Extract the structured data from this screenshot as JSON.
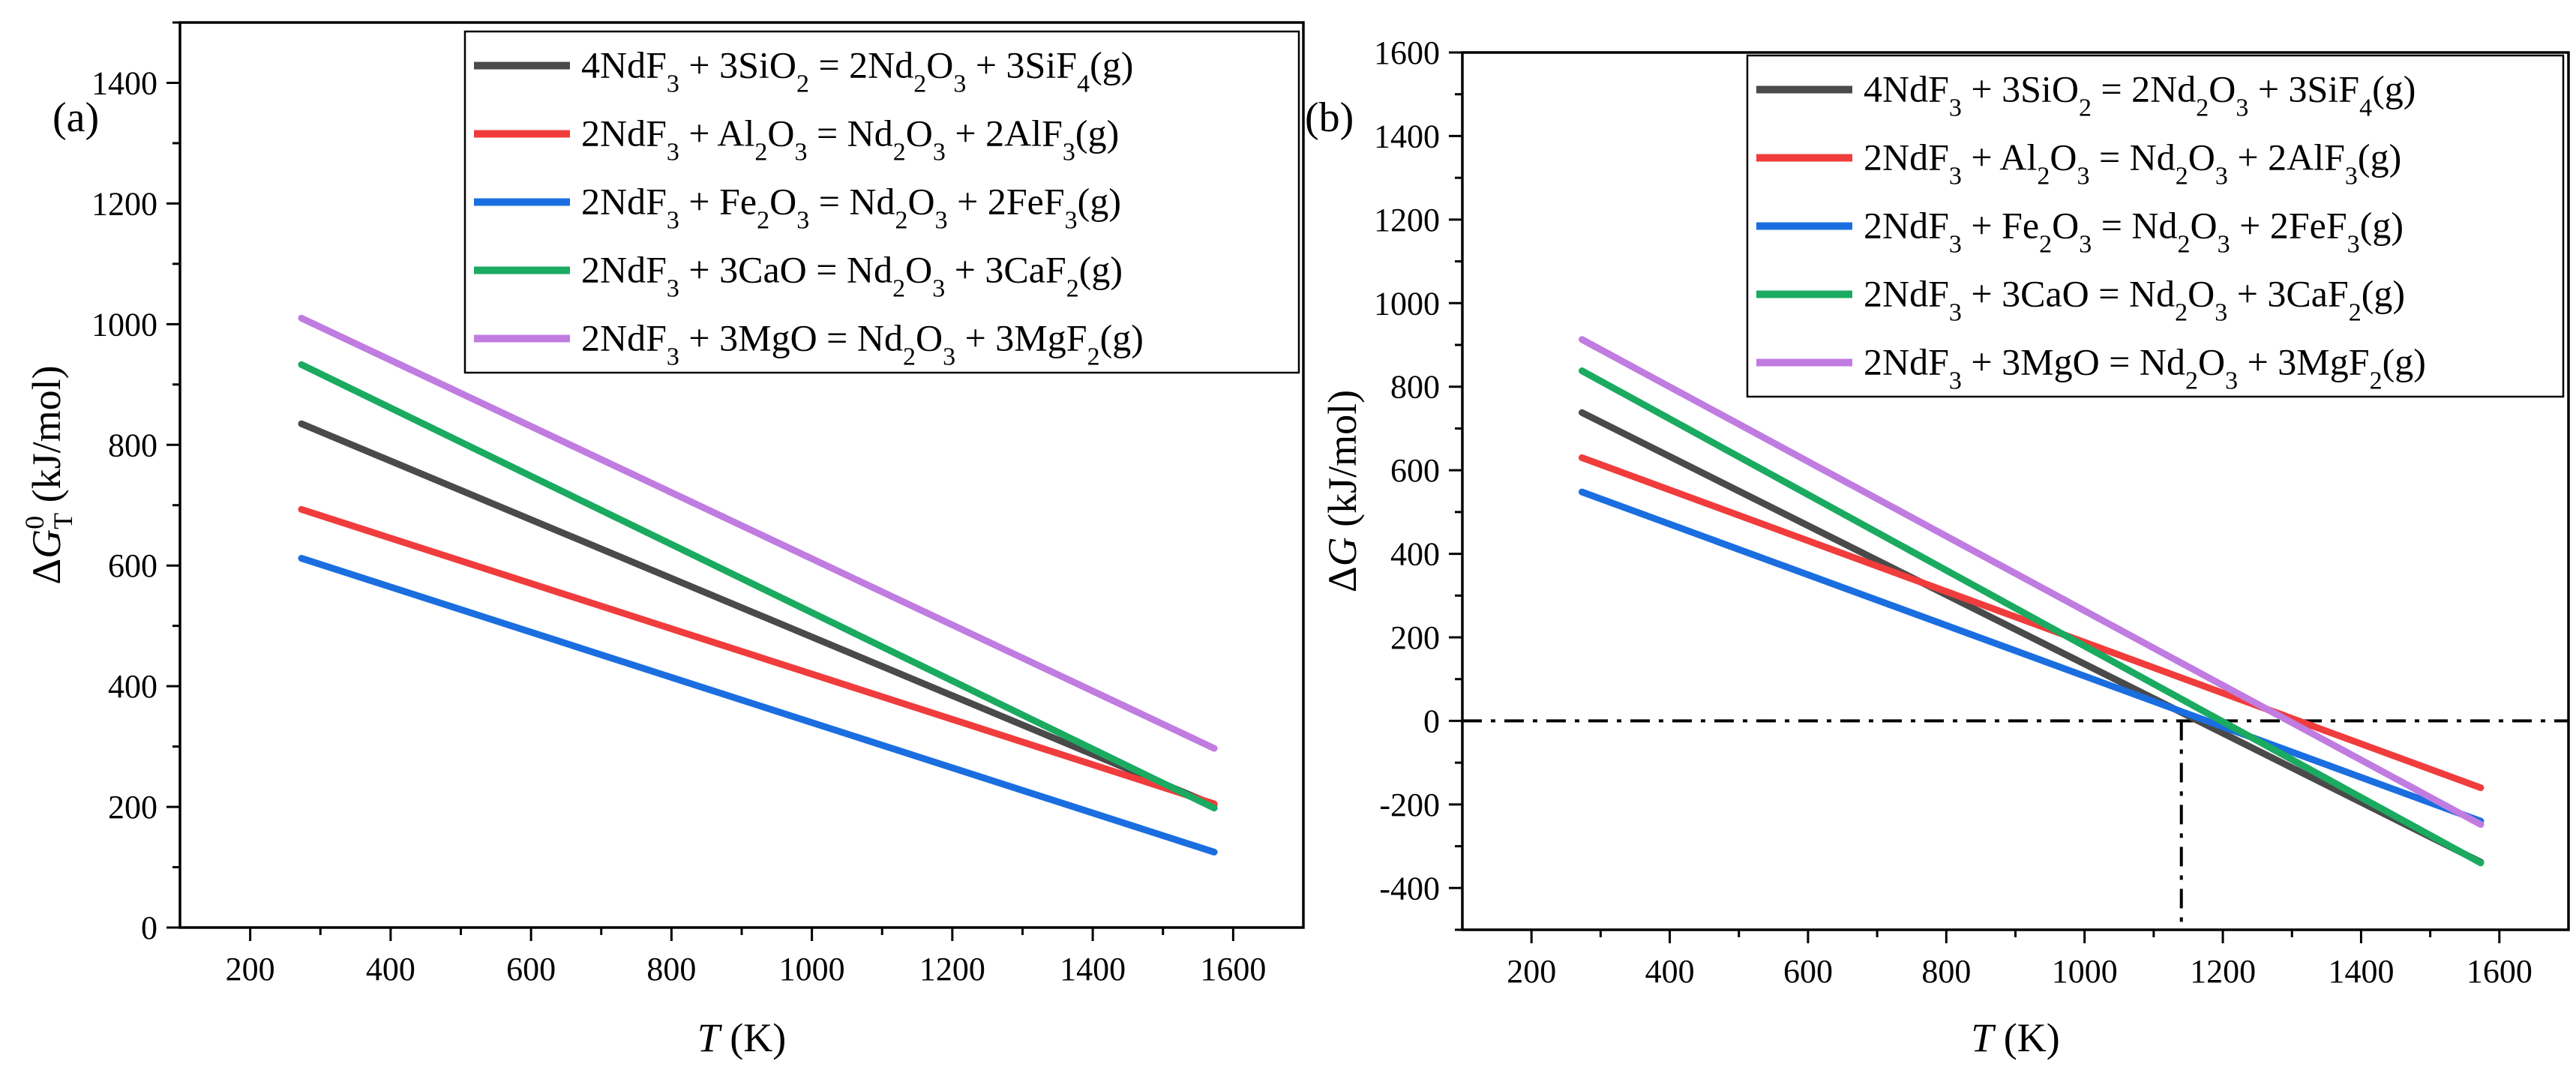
{
  "chart_data": [
    {
      "type": "line",
      "panel_label": "(a)",
      "xlabel": "T (K)",
      "ylabel": "ΔG°T (kJ/mol)",
      "xlim": [
        100,
        1700
      ],
      "ylim": [
        0,
        1500
      ],
      "xticks": [
        200,
        400,
        600,
        800,
        1000,
        1200,
        1400,
        1600
      ],
      "yticks": [
        0,
        200,
        400,
        600,
        800,
        1000,
        1200,
        1400
      ],
      "grid": false,
      "legend": "top-right",
      "series": [
        {
          "name": "4NdF3 + 3SiO2 = 2Nd2O3 + 3SiF4(g)",
          "color": "#4a4a4a",
          "x": [
            273,
            1573
          ],
          "y": [
            835,
            203
          ]
        },
        {
          "name": "2NdF3 + Al2O3 = Nd2O3 + 2AlF3(g)",
          "color": "#f03c3c",
          "x": [
            273,
            1573
          ],
          "y": [
            693,
            205
          ]
        },
        {
          "name": "2NdF3 + Fe2O3 = Nd2O3 + 2FeF3(g)",
          "color": "#1a6ee0",
          "x": [
            273,
            1573
          ],
          "y": [
            612,
            125
          ]
        },
        {
          "name": "2NdF3 + 3CaO = Nd2O3 + 3CaF2(g)",
          "color": "#1aaa60",
          "x": [
            273,
            1573
          ],
          "y": [
            933,
            198
          ]
        },
        {
          "name": "2NdF3 + 3MgO = Nd2O3 + 3MgF2(g)",
          "color": "#c07ce0",
          "x": [
            273,
            1573
          ],
          "y": [
            1010,
            297
          ]
        }
      ]
    },
    {
      "type": "line",
      "panel_label": "(b)",
      "xlabel": "T (K)",
      "ylabel": "ΔG (kJ/mol)",
      "xlim": [
        100,
        1700
      ],
      "ylim": [
        -500,
        1600
      ],
      "xticks": [
        200,
        400,
        600,
        800,
        1000,
        1200,
        1400,
        1600
      ],
      "yticks": [
        -400,
        -200,
        0,
        200,
        400,
        600,
        800,
        1000,
        1200,
        1400,
        1600
      ],
      "grid": false,
      "legend": "top-right",
      "reference_lines": {
        "y": 0,
        "x": 1140,
        "style": "dash-dot"
      },
      "series": [
        {
          "name": "4NdF3 + 3SiO2 = 2Nd2O3 + 3SiF4(g)",
          "color": "#4a4a4a",
          "x": [
            273,
            1573
          ],
          "y": [
            738,
            -338
          ]
        },
        {
          "name": "2NdF3 + Al2O3 = Nd2O3 + 2AlF3(g)",
          "color": "#f03c3c",
          "x": [
            273,
            1573
          ],
          "y": [
            630,
            -160
          ]
        },
        {
          "name": "2NdF3 + Fe2O3 = Nd2O3 + 2FeF3(g)",
          "color": "#1a6ee0",
          "x": [
            273,
            1573
          ],
          "y": [
            548,
            -240
          ]
        },
        {
          "name": "2NdF3 + 3CaO = Nd2O3 + 3CaF2(g)",
          "color": "#1aaa60",
          "x": [
            273,
            1573
          ],
          "y": [
            838,
            -340
          ]
        },
        {
          "name": "2NdF3 + 3MgO = Nd2O3 + 3MgF2(g)",
          "color": "#c07ce0",
          "x": [
            273,
            1573
          ],
          "y": [
            913,
            -248
          ]
        }
      ]
    }
  ]
}
